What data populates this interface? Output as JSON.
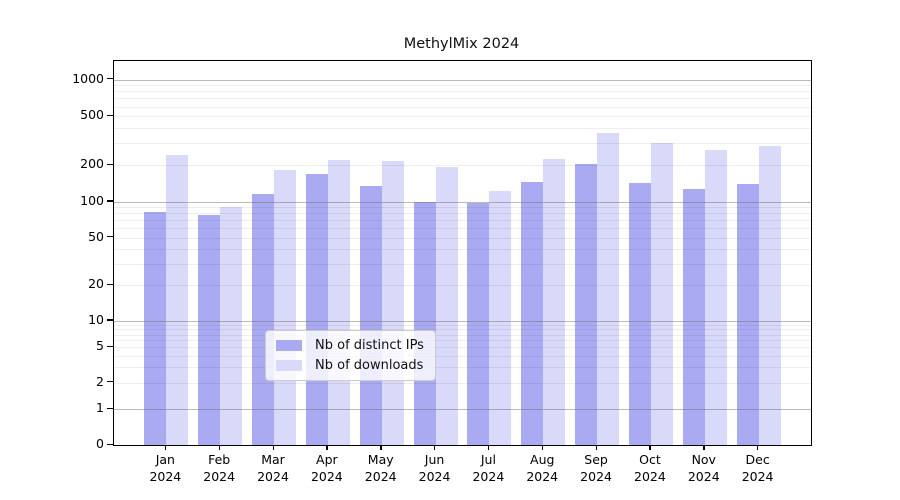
{
  "title": "MethylMix 2024",
  "chart_data": {
    "type": "bar",
    "title": "MethylMix 2024",
    "categories": [
      "Jan",
      "Feb",
      "Mar",
      "Apr",
      "May",
      "Jun",
      "Jul",
      "Aug",
      "Sep",
      "Oct",
      "Nov",
      "Dec"
    ],
    "category_year": "2024",
    "series": [
      {
        "name": "Nb of distinct IPs",
        "color": "#aaaaf3",
        "values": [
          82,
          77,
          115,
          168,
          135,
          100,
          98,
          146,
          205,
          144,
          128,
          140
        ]
      },
      {
        "name": "Nb of downloads",
        "color": "#d9d9f9",
        "values": [
          240,
          90,
          182,
          222,
          215,
          193,
          122,
          225,
          365,
          300,
          263,
          287
        ]
      }
    ],
    "ylabel": "",
    "xlabel": "",
    "yticks": [
      0,
      1,
      2,
      5,
      10,
      20,
      50,
      100,
      200,
      500,
      1000
    ],
    "ytick_labels": [
      "0",
      "1",
      "2",
      "5",
      "10",
      "20",
      "50",
      "100",
      "200",
      "500",
      "1000"
    ],
    "scale": "log above 1, linear 0-1",
    "ylim": [
      0,
      1400
    ],
    "grid": "horizontal, major at powers of 10, faint minors at 2-9 per decade, drawn over bars",
    "legend_position": "lower center inside plot"
  },
  "colors": {
    "bar_dark": "#aaaaf3",
    "bar_light": "#d9d9f9",
    "major_grid": "#8f8f8f",
    "minor_grid": "#ebebeb",
    "axis": "#000000",
    "legend_border": "#cccccc"
  }
}
